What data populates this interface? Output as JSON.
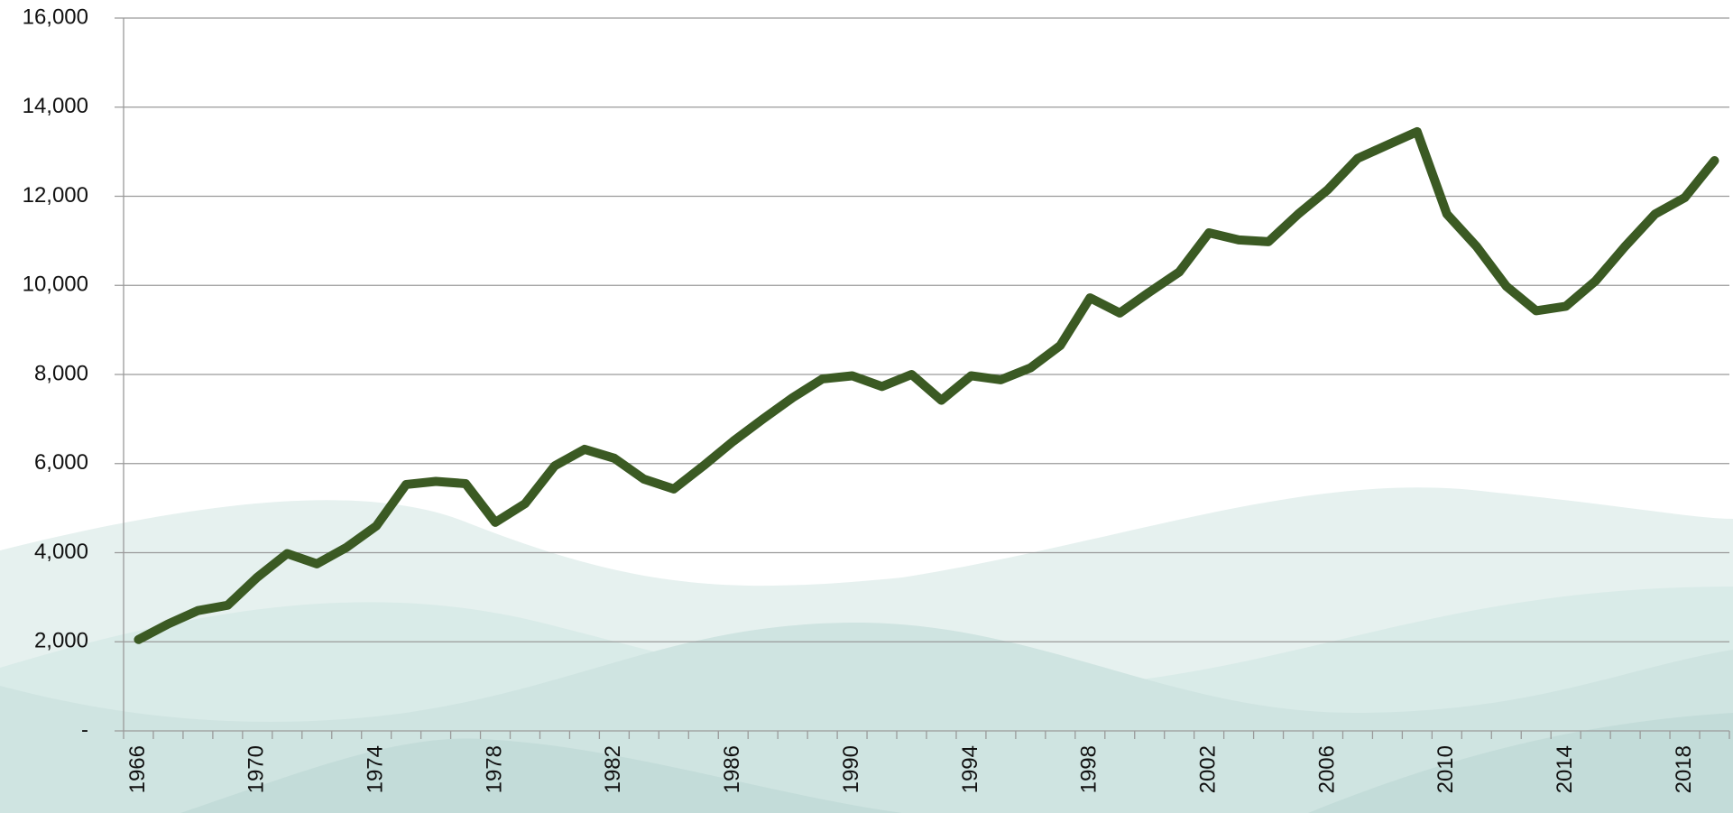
{
  "chart_data": {
    "type": "line",
    "categories": [
      "1966",
      null,
      null,
      null,
      "1970",
      null,
      null,
      null,
      "1974",
      null,
      null,
      null,
      "1978",
      null,
      null,
      null,
      "1982",
      null,
      null,
      null,
      "1986",
      null,
      null,
      null,
      "1990",
      null,
      null,
      null,
      "1994",
      null,
      null,
      null,
      "1998",
      null,
      null,
      null,
      "2002",
      null,
      null,
      null,
      "2006",
      null,
      null,
      null,
      "2010",
      null,
      null,
      null,
      "2014",
      null,
      null,
      null,
      "2018",
      null
    ],
    "values": [
      2050,
      2400,
      2700,
      2820,
      3450,
      3980,
      3750,
      4120,
      4600,
      5530,
      5600,
      5550,
      4680,
      5100,
      5950,
      6320,
      6120,
      5650,
      5430,
      5950,
      6500,
      7000,
      7480,
      7900,
      7970,
      7730,
      8000,
      7420,
      7970,
      7880,
      8150,
      8650,
      9720,
      9380,
      9850,
      10300,
      11180,
      11020,
      10980,
      11600,
      12150,
      12850,
      13150,
      13450,
      11600,
      10870,
      9980,
      9430,
      9530,
      10100,
      10880,
      11600,
      11970,
      12800
    ],
    "color": "#3b5a23",
    "ylim": [
      0,
      16000
    ],
    "yticks": [
      {
        "value": 0,
        "label": "-"
      },
      {
        "value": 2000,
        "label": "2,000"
      },
      {
        "value": 4000,
        "label": "4,000"
      },
      {
        "value": 6000,
        "label": "6,000"
      },
      {
        "value": 8000,
        "label": "8,000"
      },
      {
        "value": 10000,
        "label": "10,000"
      },
      {
        "value": 12000,
        "label": "12,000"
      },
      {
        "value": 14000,
        "label": "14,000"
      },
      {
        "value": 16000,
        "label": "16,000"
      }
    ],
    "grid": true
  }
}
